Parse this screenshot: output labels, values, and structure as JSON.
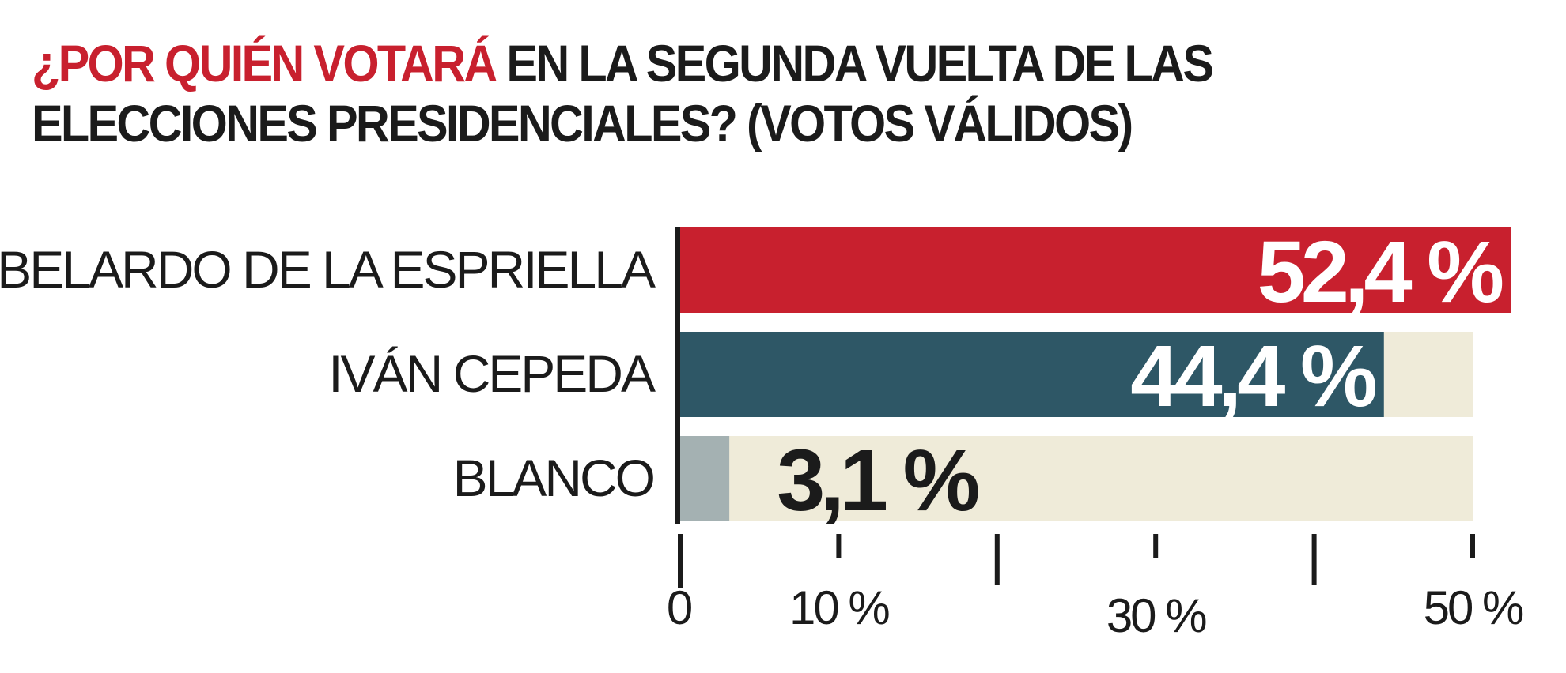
{
  "title": {
    "highlight": "¿POR QUIÉN VOTARÁ",
    "rest": "EN LA SEGUNDA VUELTA DE LAS ELECCIONES PRESIDENCIALES?  (VOTOS VÁLIDOS)"
  },
  "colors": {
    "accent": "#c8202e",
    "teal": "#2e5766",
    "gray": "#a4b1b2",
    "track": "#efebd9",
    "text": "#1b1b1b",
    "white": "#ffffff"
  },
  "chart_data": {
    "type": "bar",
    "orientation": "horizontal",
    "title": "¿POR QUIÉN VOTARÁ EN LA SEGUNDA VUELTA DE LAS ELECCIONES PRESIDENCIALES?  (VOTOS VÁLIDOS)",
    "categories": [
      "ABELARDO DE LA ESPRIELLA",
      "IVÁN CEPEDA",
      "BLANCO"
    ],
    "values": [
      52.4,
      44.4,
      3.1
    ],
    "value_labels": [
      "52,4 %",
      "44,4 %",
      "3,1 %"
    ],
    "bar_colors": [
      "#c8202e",
      "#2e5766",
      "#a4b1b2"
    ],
    "xlim": [
      0,
      50
    ],
    "major_ticks": [
      0,
      10,
      30,
      50
    ],
    "tick_labels": [
      "0",
      "10 %",
      "30 %",
      "50 %"
    ],
    "minor_ticks": [
      20,
      40
    ],
    "grid": false,
    "legend": "none"
  }
}
